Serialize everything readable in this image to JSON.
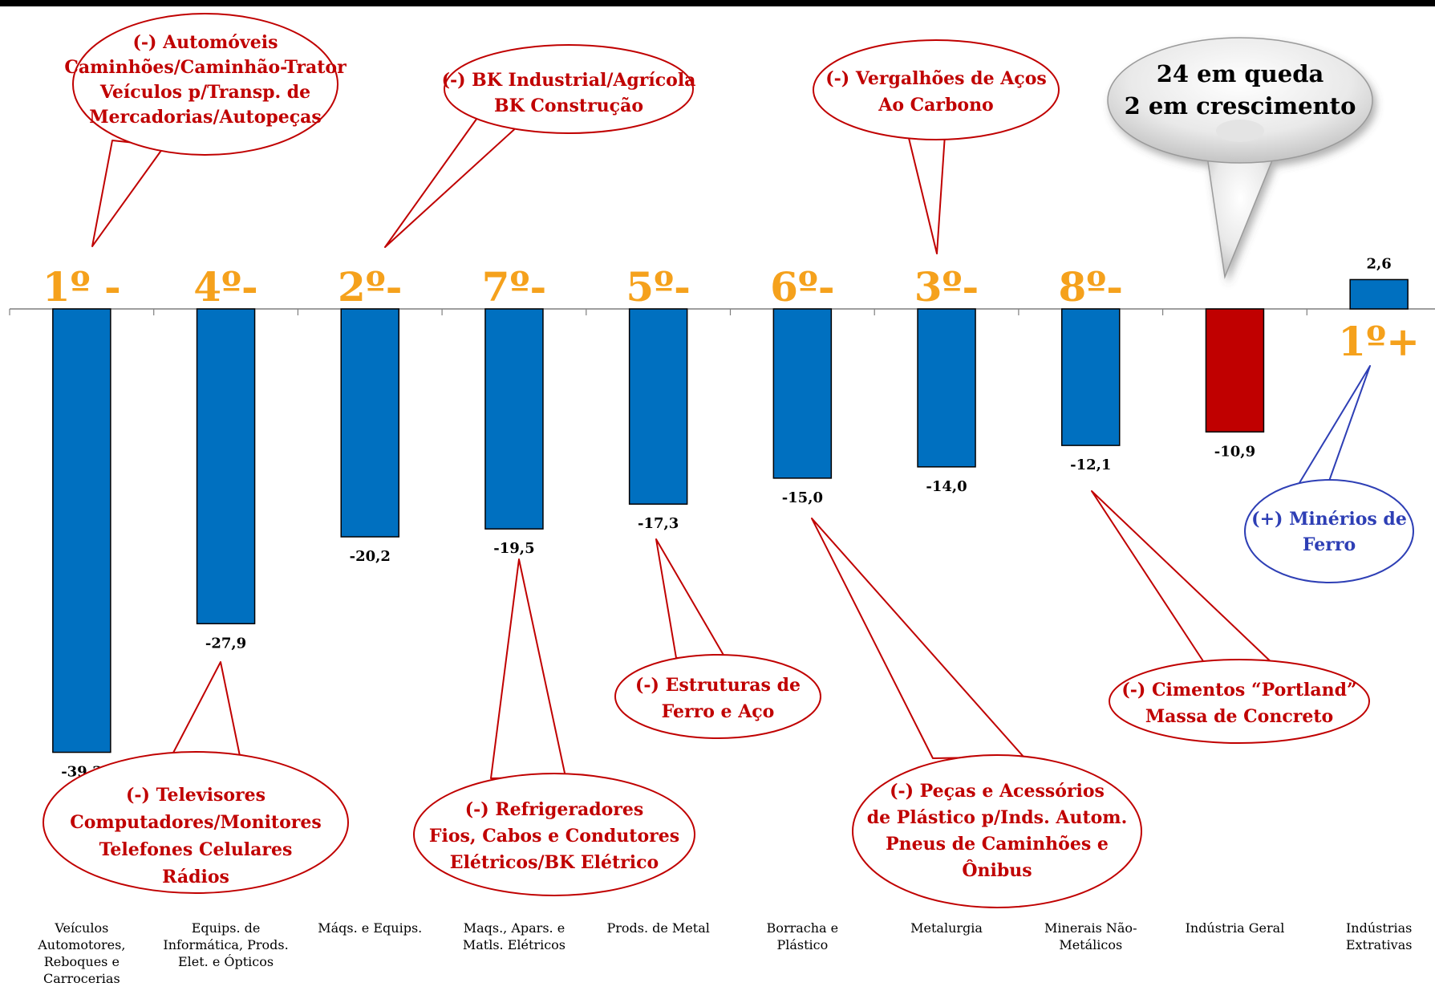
{
  "chart_data": {
    "type": "bar",
    "categories": [
      [
        "Veículos",
        "Automotores,",
        "Reboques e",
        "Carrocerias"
      ],
      [
        "Equips. de",
        "Informática, Prods.",
        "Elet. e Ópticos"
      ],
      [
        "Máqs. e Equips."
      ],
      [
        "Maqs., Apars. e",
        "Matls. Elétricos"
      ],
      [
        "Prods. de Metal"
      ],
      [
        "Borracha e",
        "Plástico"
      ],
      [
        "Metalurgia"
      ],
      [
        "Minerais Não-",
        "Metálicos"
      ],
      [
        "Indústria Geral"
      ],
      [
        "Indústrias",
        "Extrativas"
      ]
    ],
    "values": [
      -39.3,
      -27.9,
      -20.2,
      -19.5,
      -17.3,
      -15.0,
      -14.0,
      -12.1,
      -10.9,
      2.6
    ],
    "value_labels": [
      "-39,3",
      "-27,9",
      "-20,2",
      "-19,5",
      "-17,3",
      "-15,0",
      "-14,0",
      "-12,1",
      "-10,9",
      "2,6"
    ],
    "bar_colors": [
      "#0070C0",
      "#0070C0",
      "#0070C0",
      "#0070C0",
      "#0070C0",
      "#0070C0",
      "#0070C0",
      "#0070C0",
      "#C00000",
      "#0070C0"
    ],
    "rank_labels": [
      "1º -",
      "4º-",
      "2º-",
      "7º-",
      "5º-",
      "6º-",
      "3º-",
      "8º-",
      "",
      "1º+"
    ],
    "rank_color": "#F5A11C",
    "ylim": [
      -39.3,
      2.6
    ],
    "grid": false,
    "title": "",
    "xlabel": "",
    "ylabel": ""
  },
  "callouts": [
    {
      "lines": [
        "(-) Automóveis",
        "Caminhões/Caminhão-Trator",
        "Veículos p/Transp. de",
        "Mercadorias/Autopeças"
      ],
      "color": "#C00000"
    },
    {
      "lines": [
        "(-) BK Industrial/Agrícola",
        "BK Construção"
      ],
      "color": "#C00000"
    },
    {
      "lines": [
        "(-) Vergalhões de Aços",
        "Ao Carbono"
      ],
      "color": "#C00000"
    },
    {
      "lines": [
        "24 em queda",
        "2 em crescimento"
      ],
      "color": "#000000"
    },
    {
      "lines": [
        "(+) Minérios de",
        "Ferro"
      ],
      "color": "#2E3FB5"
    },
    {
      "lines": [
        "(-) Estruturas de",
        "Ferro e Aço"
      ],
      "color": "#C00000"
    },
    {
      "lines": [
        "(-) Cimentos “Portland”",
        "Massa de Concreto"
      ],
      "color": "#C00000"
    },
    {
      "lines": [
        "(-) Televisores",
        "Computadores/Monitores",
        "Telefones Celulares",
        "Rádios"
      ],
      "color": "#C00000"
    },
    {
      "lines": [
        "(-) Refrigeradores",
        "Fios, Cabos e Condutores",
        "Elétricos/BK Elétrico"
      ],
      "color": "#C00000"
    },
    {
      "lines": [
        "(-) Peças e Acessórios",
        "de Plástico p/Inds. Autom.",
        "Pneus de Caminhões e",
        "Ônibus"
      ],
      "color": "#C00000"
    }
  ]
}
